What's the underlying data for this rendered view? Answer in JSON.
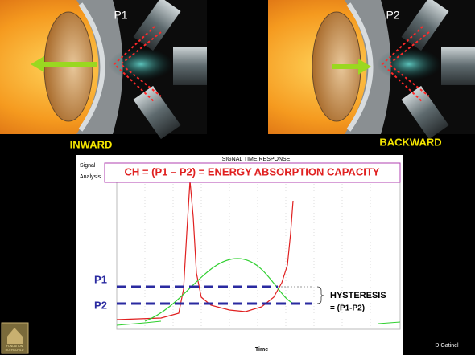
{
  "panels": [
    {
      "label": "P1",
      "caption": "INWARD"
    },
    {
      "label": "P2",
      "caption": "BACKWARD"
    }
  ],
  "graph": {
    "title": "SIGNAL TIME RESPONSE",
    "side_label": [
      "Signal",
      "Analysis"
    ],
    "formula": "CH = (P1 – P2) = ENERGY ABSORPTION CAPACITY",
    "levels": [
      "P1",
      "P2"
    ],
    "annotation": [
      "HYSTERESIS",
      "= (P1-P2)"
    ],
    "x_label": "Time"
  },
  "logo": [
    "FONDATION",
    "ROTHSCHILD"
  ],
  "credit": "D Gatinel"
}
